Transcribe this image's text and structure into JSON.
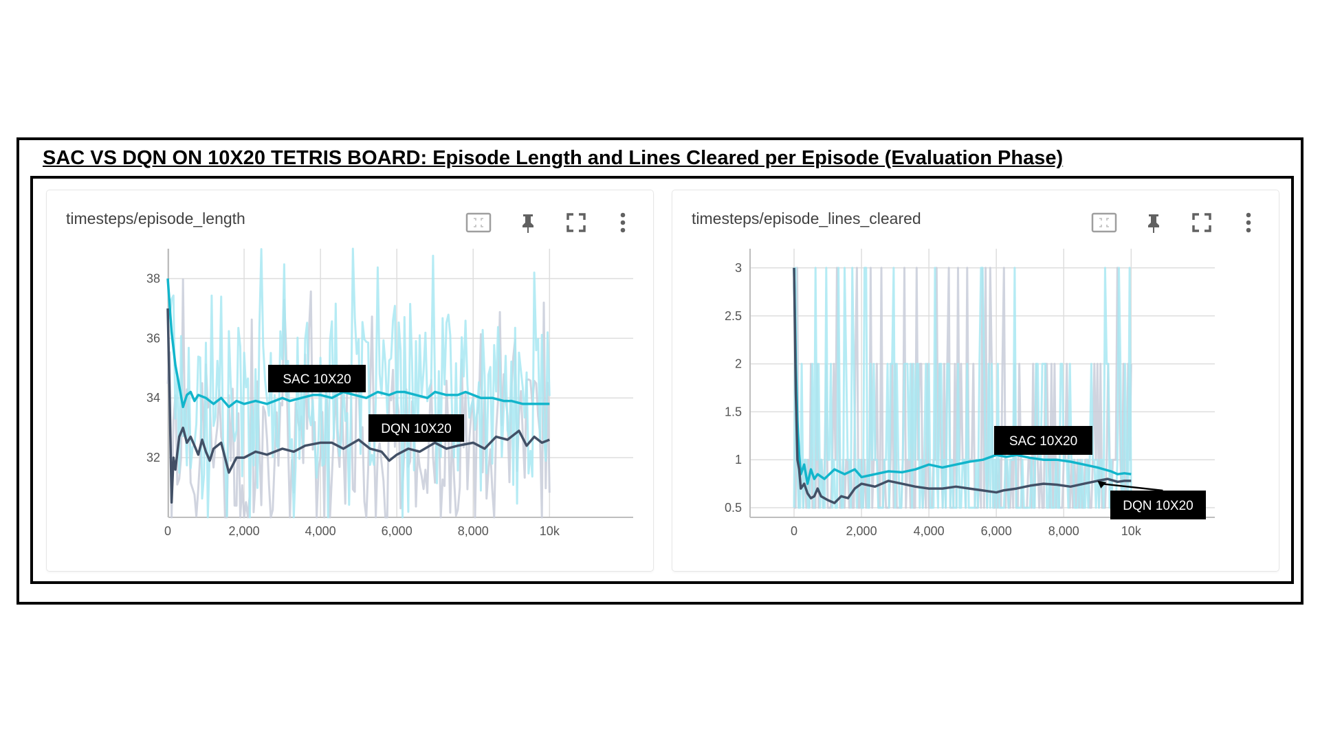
{
  "title": "SAC VS DQN ON 10X20 TETRIS BOARD: Episode Length and Lines Cleared per Episode (Evaluation Phase)",
  "toolbar_icons": [
    "fit-domain-icon",
    "pin-icon",
    "fullscreen-icon",
    "more-vert-icon"
  ],
  "colors": {
    "sac_smoothed": "#12b5cb",
    "sac_raw": "#a8e8f2",
    "dqn_smoothed": "#425066",
    "dqn_raw": "#c8ccd9",
    "grid": "#dddddd",
    "label_bg": "#000000"
  },
  "chart_data": [
    {
      "type": "line",
      "title": "timesteps/episode_length",
      "xlim": [
        0,
        10000
      ],
      "ylim": [
        30,
        39
      ],
      "x_ticks": [
        0,
        2000,
        4000,
        6000,
        8000,
        10000
      ],
      "x_tick_labels": [
        "0",
        "2,000",
        "4,000",
        "6,000",
        "8,000",
        "10k"
      ],
      "y_ticks": [
        32,
        34,
        36,
        38
      ],
      "y_tick_labels": [
        "32",
        "34",
        "36",
        "38"
      ],
      "annotations": [
        "SAC 10X20",
        "DQN 10X20"
      ],
      "series": [
        {
          "name": "SAC 10X20",
          "x": [
            0,
            100,
            200,
            300,
            400,
            500,
            600,
            700,
            800,
            1000,
            1200,
            1400,
            1600,
            1800,
            2000,
            2300,
            2600,
            2800,
            3000,
            3200,
            3500,
            3800,
            4000,
            4300,
            4600,
            4900,
            5200,
            5500,
            5800,
            6000,
            6200,
            6500,
            6800,
            7000,
            7300,
            7600,
            7800,
            8000,
            8200,
            8500,
            8800,
            9000,
            9300,
            9600,
            9800,
            10000
          ],
          "values": [
            38,
            36.2,
            35.1,
            34.4,
            33.7,
            34.1,
            34.2,
            33.9,
            34.1,
            34.0,
            33.8,
            34.0,
            33.7,
            33.9,
            33.8,
            33.9,
            33.8,
            33.9,
            34.0,
            33.9,
            34.0,
            34.1,
            34.1,
            34.0,
            34.2,
            34.1,
            34.0,
            34.2,
            34.1,
            34.2,
            34.2,
            34.1,
            34.0,
            34.2,
            34.1,
            34.1,
            34.2,
            34.1,
            34.0,
            34.0,
            33.9,
            33.9,
            33.8,
            33.8,
            33.8,
            33.8
          ]
        },
        {
          "name": "DQN 10X20",
          "x": [
            0,
            50,
            100,
            150,
            200,
            300,
            400,
            500,
            600,
            700,
            800,
            900,
            1000,
            1100,
            1200,
            1400,
            1600,
            1800,
            2000,
            2300,
            2600,
            3000,
            3300,
            3600,
            4000,
            4300,
            4600,
            5000,
            5300,
            5600,
            5800,
            6000,
            6300,
            6600,
            7000,
            7300,
            7600,
            8000,
            8300,
            8600,
            8900,
            9200,
            9400,
            9600,
            9800,
            10000
          ],
          "values": [
            37,
            34.0,
            30.5,
            32.0,
            31.6,
            32.7,
            33.0,
            32.5,
            32.7,
            32.4,
            32.1,
            32.6,
            32.2,
            31.9,
            32.3,
            32.5,
            31.5,
            32.0,
            32.0,
            32.2,
            32.1,
            32.3,
            32.2,
            32.4,
            32.5,
            32.5,
            32.3,
            32.6,
            32.3,
            32.2,
            31.9,
            32.1,
            32.3,
            32.2,
            32.5,
            32.3,
            32.4,
            32.5,
            32.3,
            32.7,
            32.6,
            32.9,
            32.4,
            32.7,
            32.5,
            32.6
          ]
        }
      ]
    },
    {
      "type": "line",
      "title": "timesteps/episode_lines_cleared",
      "xlim": [
        0,
        10000
      ],
      "ylim": [
        0.4,
        3.2
      ],
      "x_ticks": [
        0,
        2000,
        4000,
        6000,
        8000,
        10000
      ],
      "x_tick_labels": [
        "0",
        "2,000",
        "4,000",
        "6,000",
        "8,000",
        "10k"
      ],
      "y_ticks": [
        0.5,
        1,
        1.5,
        2,
        2.5,
        3
      ],
      "y_tick_labels": [
        "0.5",
        "1",
        "1.5",
        "2",
        "2.5",
        "3"
      ],
      "annotations": [
        "SAC 10X20",
        "DQN 10X20"
      ],
      "series": [
        {
          "name": "SAC 10X20",
          "x": [
            0,
            50,
            100,
            150,
            200,
            300,
            400,
            500,
            600,
            700,
            900,
            1200,
            1500,
            1800,
            2000,
            2400,
            2800,
            3200,
            3600,
            4000,
            4400,
            4800,
            5200,
            5600,
            6000,
            6300,
            6600,
            7000,
            7400,
            7800,
            8200,
            8600,
            9000,
            9400,
            9600,
            9800,
            10000
          ],
          "values": [
            3.0,
            2.0,
            1.4,
            1.05,
            0.85,
            0.95,
            0.75,
            0.9,
            0.8,
            0.85,
            0.8,
            0.9,
            0.85,
            0.9,
            0.82,
            0.85,
            0.88,
            0.87,
            0.9,
            0.95,
            0.92,
            0.95,
            0.98,
            1.0,
            1.05,
            1.03,
            1.05,
            1.02,
            1.0,
            1.0,
            0.98,
            0.95,
            0.92,
            0.88,
            0.85,
            0.86,
            0.85
          ]
        },
        {
          "name": "DQN 10X20",
          "x": [
            0,
            50,
            100,
            150,
            200,
            300,
            400,
            500,
            600,
            700,
            800,
            1000,
            1200,
            1400,
            1600,
            1800,
            2000,
            2400,
            2800,
            3200,
            3600,
            4000,
            4400,
            4800,
            5200,
            5600,
            6000,
            6200,
            6600,
            7000,
            7400,
            7800,
            8200,
            8600,
            9000,
            9300,
            9600,
            9800,
            10000
          ],
          "values": [
            3.0,
            1.7,
            1.0,
            0.9,
            0.7,
            0.75,
            0.65,
            0.6,
            0.62,
            0.7,
            0.62,
            0.58,
            0.55,
            0.62,
            0.6,
            0.7,
            0.75,
            0.72,
            0.78,
            0.75,
            0.72,
            0.7,
            0.7,
            0.72,
            0.7,
            0.68,
            0.66,
            0.68,
            0.7,
            0.73,
            0.75,
            0.74,
            0.72,
            0.75,
            0.78,
            0.8,
            0.77,
            0.78,
            0.78
          ]
        }
      ]
    }
  ]
}
